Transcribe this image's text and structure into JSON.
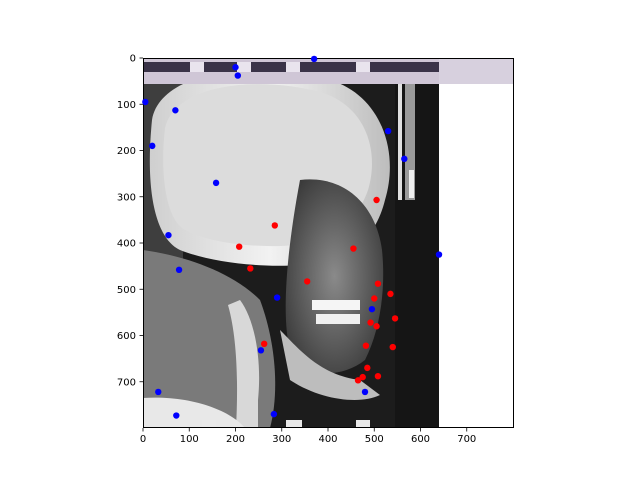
{
  "chart_data": {
    "type": "scatter",
    "title": "",
    "xlabel": "",
    "ylabel": "",
    "xlim": [
      0,
      800
    ],
    "ylim": [
      800,
      0
    ],
    "y_inverted": true,
    "grid": false,
    "legend": "none",
    "image_extent": [
      0,
      640,
      800,
      0
    ],
    "x_ticks": [
      0,
      100,
      200,
      300,
      400,
      500,
      600,
      700
    ],
    "y_ticks": [
      0,
      100,
      200,
      300,
      400,
      500,
      600,
      700
    ],
    "series": [
      {
        "color": "#0000ff",
        "points": [
          {
            "x": 200,
            "y": 20
          },
          {
            "x": 205,
            "y": 38
          },
          {
            "x": 370,
            "y": 2
          },
          {
            "x": 5,
            "y": 95
          },
          {
            "x": 70,
            "y": 113
          },
          {
            "x": 530,
            "y": 158
          },
          {
            "x": 20,
            "y": 190
          },
          {
            "x": 565,
            "y": 218
          },
          {
            "x": 158,
            "y": 270
          },
          {
            "x": 55,
            "y": 383
          },
          {
            "x": 640,
            "y": 425
          },
          {
            "x": 78,
            "y": 458
          },
          {
            "x": 290,
            "y": 518
          },
          {
            "x": 495,
            "y": 543
          },
          {
            "x": 255,
            "y": 632
          },
          {
            "x": 33,
            "y": 722
          },
          {
            "x": 480,
            "y": 722
          },
          {
            "x": 72,
            "y": 773
          },
          {
            "x": 283,
            "y": 770
          }
        ]
      },
      {
        "color": "#ff0000",
        "points": [
          {
            "x": 505,
            "y": 307
          },
          {
            "x": 285,
            "y": 362
          },
          {
            "x": 208,
            "y": 408
          },
          {
            "x": 455,
            "y": 412
          },
          {
            "x": 232,
            "y": 455
          },
          {
            "x": 355,
            "y": 483
          },
          {
            "x": 508,
            "y": 488
          },
          {
            "x": 535,
            "y": 510
          },
          {
            "x": 500,
            "y": 520
          },
          {
            "x": 545,
            "y": 563
          },
          {
            "x": 492,
            "y": 572
          },
          {
            "x": 505,
            "y": 580
          },
          {
            "x": 262,
            "y": 618
          },
          {
            "x": 482,
            "y": 622
          },
          {
            "x": 540,
            "y": 625
          },
          {
            "x": 485,
            "y": 670
          },
          {
            "x": 508,
            "y": 688
          },
          {
            "x": 475,
            "y": 690
          },
          {
            "x": 465,
            "y": 697
          }
        ]
      }
    ]
  }
}
